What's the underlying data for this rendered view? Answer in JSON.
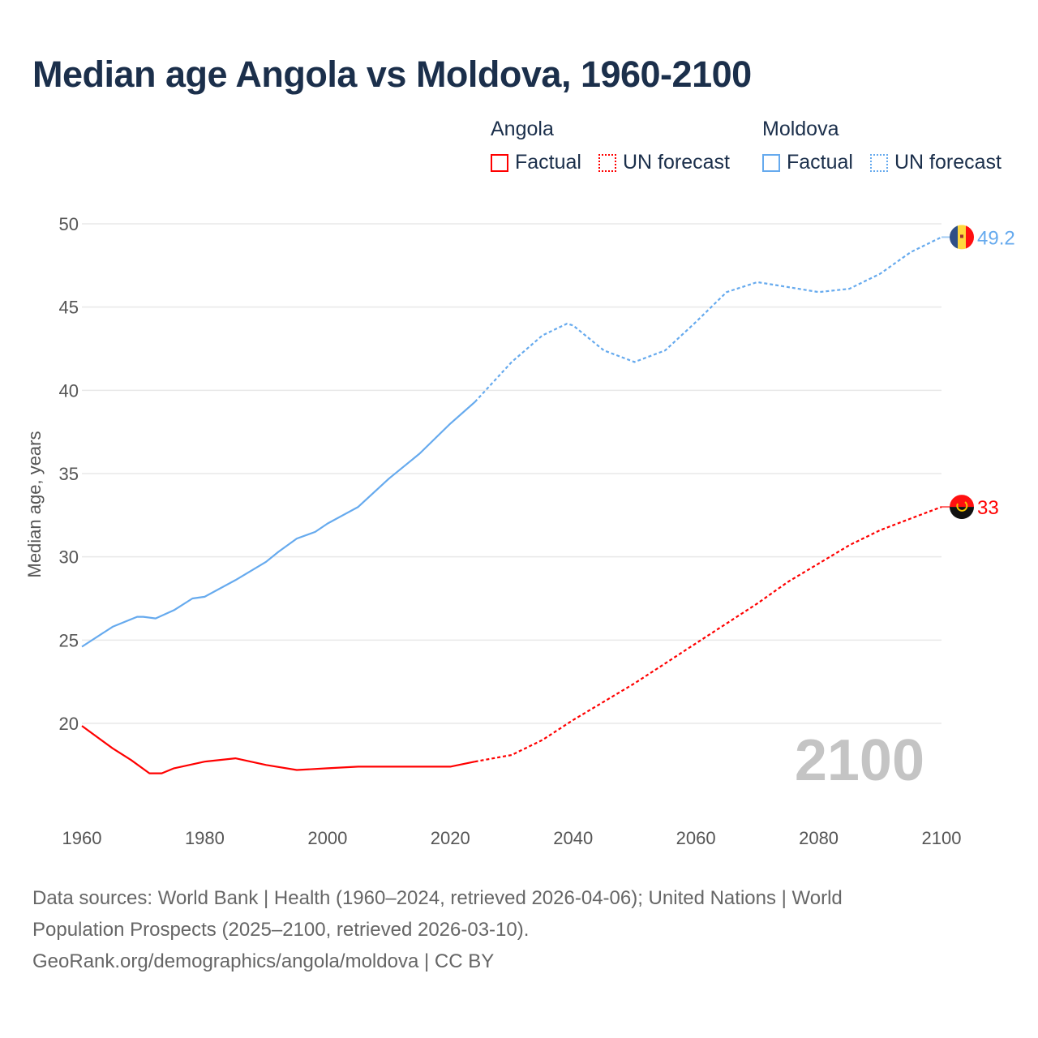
{
  "title": "Median age Angola vs Moldova, 1960-2100",
  "legend": {
    "groups": [
      {
        "name": "Angola",
        "factual": "Factual",
        "forecast": "UN forecast",
        "color": "#ff0000"
      },
      {
        "name": "Moldova",
        "factual": "Factual",
        "forecast": "UN forecast",
        "color": "#66aaee"
      }
    ]
  },
  "chart_data": {
    "type": "line",
    "title": "Median age Angola vs Moldova, 1960-2100",
    "xlabel": "",
    "ylabel": "Median age, years",
    "xlim": [
      1960,
      2100
    ],
    "ylim": [
      14.3,
      50
    ],
    "xticks": [
      "1960",
      "1980",
      "2000",
      "2020",
      "2040",
      "2060",
      "2080",
      "2100"
    ],
    "yticks": [
      "20",
      "25",
      "30",
      "35",
      "40",
      "45",
      "50"
    ],
    "grid": true,
    "watermark": "2100",
    "forecast_start": 2024,
    "series": [
      {
        "name": "Angola",
        "color": "#ff0000",
        "end_label": "33",
        "x": [
          1960,
          1965,
          1968,
          1971,
          1973,
          1975,
          1980,
          1985,
          1990,
          1995,
          2000,
          2005,
          2010,
          2020,
          2022,
          2024,
          2030,
          2035,
          2040,
          2045,
          2050,
          2055,
          2060,
          2065,
          2070,
          2075,
          2080,
          2085,
          2090,
          2095,
          2100
        ],
        "y": [
          19.85,
          18.5,
          17.8,
          17.0,
          17.0,
          17.3,
          17.7,
          17.9,
          17.5,
          17.2,
          17.3,
          17.4,
          17.4,
          17.4,
          17.55,
          17.7,
          18.1,
          19.0,
          20.2,
          21.3,
          22.4,
          23.6,
          24.8,
          26.0,
          27.2,
          28.5,
          29.6,
          30.7,
          31.6,
          32.3,
          33.0
        ]
      },
      {
        "name": "Moldova",
        "color": "#66aaee",
        "end_label": "49.2",
        "x": [
          1960,
          1965,
          1969,
          1970,
          1972,
          1975,
          1978,
          1980,
          1985,
          1990,
          1992,
          1995,
          1998,
          2000,
          2005,
          2010,
          2015,
          2020,
          2024,
          2030,
          2035,
          2039,
          2040,
          2045,
          2050,
          2055,
          2060,
          2065,
          2070,
          2075,
          2080,
          2085,
          2090,
          2095,
          2100
        ],
        "y": [
          24.6,
          25.8,
          26.4,
          26.4,
          26.3,
          26.8,
          27.5,
          27.6,
          28.6,
          29.7,
          30.3,
          31.1,
          31.5,
          32.0,
          33.0,
          34.7,
          36.2,
          38.0,
          39.3,
          41.7,
          43.3,
          44.0,
          43.9,
          42.4,
          41.7,
          42.4,
          44.1,
          45.9,
          46.5,
          46.2,
          45.9,
          46.1,
          47.0,
          48.3,
          49.2
        ]
      }
    ]
  },
  "footer": {
    "line1": "Data sources: World Bank | Health (1960–2024, retrieved 2026-04-06); United Nations | World",
    "line2": "Population Prospects (2025–2100, retrieved 2026-03-10).",
    "line3": "GeoRank.org/demographics/angola/moldova | CC BY"
  }
}
